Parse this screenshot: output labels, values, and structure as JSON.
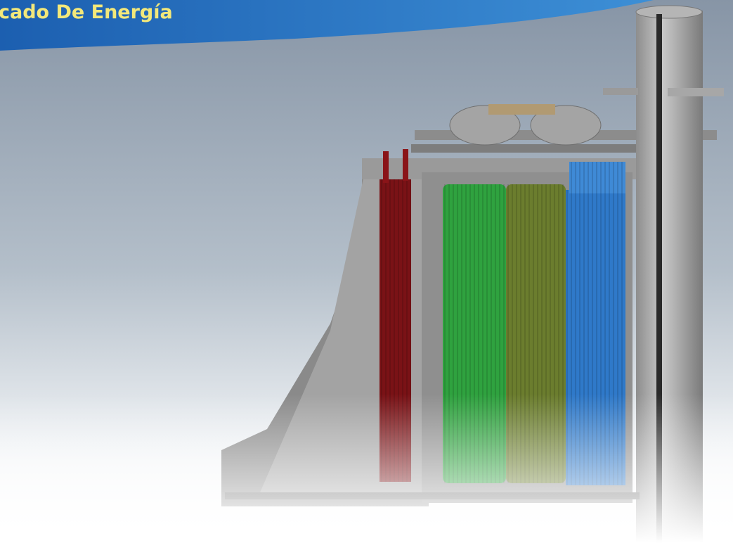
{
  "header": {
    "title": "cado De Energía"
  }
}
